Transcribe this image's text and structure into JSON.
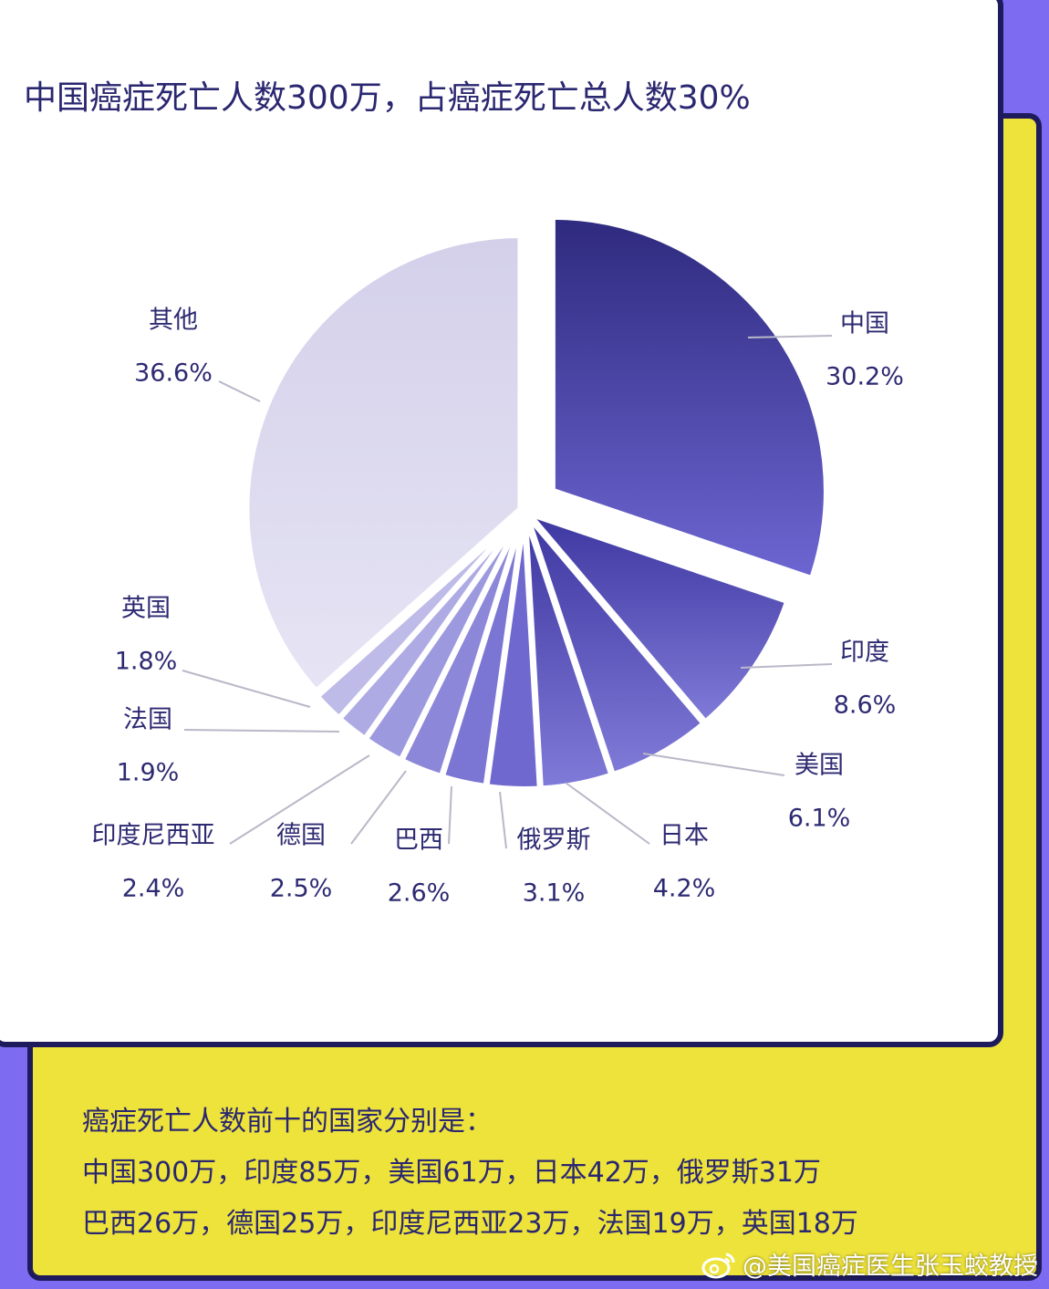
{
  "chart_data": {
    "type": "pie",
    "title": "中国癌症死亡人数300万，占癌症死亡总人数30%",
    "unit": "%",
    "exploded": "中国",
    "slices": [
      {
        "label": "中国",
        "value": 30.2,
        "value_text": "30.2%"
      },
      {
        "label": "印度",
        "value": 8.6,
        "value_text": "8.6%"
      },
      {
        "label": "美国",
        "value": 6.1,
        "value_text": "6.1%"
      },
      {
        "label": "日本",
        "value": 4.2,
        "value_text": "4.2%"
      },
      {
        "label": "俄罗斯",
        "value": 3.1,
        "value_text": "3.1%"
      },
      {
        "label": "巴西",
        "value": 2.6,
        "value_text": "2.6%"
      },
      {
        "label": "德国",
        "value": 2.5,
        "value_text": "2.5%"
      },
      {
        "label": "印度尼西亚",
        "value": 2.4,
        "value_text": "2.4%"
      },
      {
        "label": "法国",
        "value": 1.9,
        "value_text": "1.9%"
      },
      {
        "label": "英国",
        "value": 1.8,
        "value_text": "1.8%"
      },
      {
        "label": "其他",
        "value": 36.6,
        "value_text": "36.6%"
      }
    ]
  },
  "summary": {
    "heading": "癌症死亡人数前十的国家分别是：",
    "line1": "中国300万，印度85万，美国61万，日本42万，俄罗斯31万",
    "line2": "巴西26万，德国25万，印度尼西亚23万，法国19万，英国18万"
  },
  "watermark": {
    "text": "@美国癌症医生张玉蛟教授",
    "icon": "weibo-icon"
  },
  "colors": {
    "background": "#7D6BF2",
    "panel": "#EEE33A",
    "border": "#1E1B5C",
    "text": "#2A2770",
    "china_slice": "#4D45B0",
    "other_slice": "#D6D3EC"
  }
}
